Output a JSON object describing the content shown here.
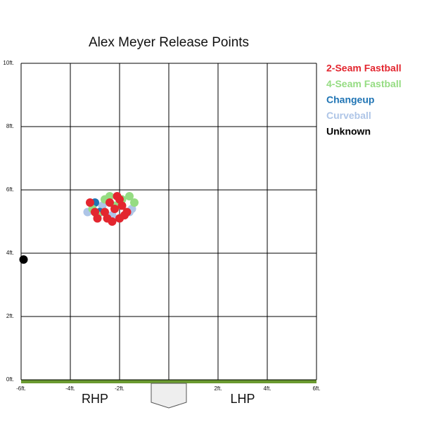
{
  "chart_data": {
    "type": "scatter",
    "title": "Alex Meyer Release Points",
    "xlim": [
      -6,
      6
    ],
    "ylim": [
      0,
      10
    ],
    "xticks": [
      {
        "value": -6,
        "label": "-6ft."
      },
      {
        "value": -4,
        "label": "-4ft."
      },
      {
        "value": -2,
        "label": "-2ft."
      },
      {
        "value": 0,
        "label": null
      },
      {
        "value": 2,
        "label": "2ft."
      },
      {
        "value": 4,
        "label": "4ft."
      },
      {
        "value": 6,
        "label": "6ft."
      }
    ],
    "yticks": [
      {
        "value": 0,
        "label": "0ft."
      },
      {
        "value": 2,
        "label": "2ft."
      },
      {
        "value": 4,
        "label": "4ft."
      },
      {
        "value": 6,
        "label": "6ft."
      },
      {
        "value": 8,
        "label": "8ft."
      },
      {
        "value": 10,
        "label": "10ft."
      }
    ],
    "grid": true,
    "annotations": [
      "RHP",
      "LHP"
    ],
    "series": [
      {
        "name": "2-Seam Fastball",
        "color": "#e3262f",
        "x": [
          -3.2,
          -2.9,
          -2.6,
          -2.3,
          -2.0,
          -1.8,
          -2.2,
          -2.5,
          -1.9,
          -2.1,
          -3.0,
          -2.4,
          -1.7,
          -2.0
        ],
        "values": [
          5.6,
          5.1,
          5.3,
          5.0,
          5.7,
          5.2,
          5.4,
          5.1,
          5.5,
          5.8,
          5.3,
          5.6,
          5.3,
          5.1
        ]
      },
      {
        "name": "4-Seam Fastball",
        "color": "#95dc82",
        "x": [
          -3.1,
          -2.6,
          -2.4,
          -1.6,
          -1.4,
          -2.9,
          -1.9,
          -2.2
        ],
        "values": [
          5.4,
          5.7,
          5.8,
          5.8,
          5.6,
          5.2,
          5.7,
          5.5
        ]
      },
      {
        "name": "Changeup",
        "color": "#1f74b4",
        "x": [
          -3.0,
          -2.8
        ],
        "values": [
          5.6,
          5.3
        ]
      },
      {
        "name": "Curveball",
        "color": "#aec5e7",
        "x": [
          -2.7,
          -1.6,
          -2.0,
          -1.5,
          -3.3,
          -2.3
        ],
        "values": [
          5.5,
          5.3,
          5.1,
          5.4,
          5.3,
          5.2
        ]
      },
      {
        "name": "Unknown",
        "color": "#000000",
        "x": [
          -5.9
        ],
        "values": [
          3.8
        ]
      }
    ]
  }
}
